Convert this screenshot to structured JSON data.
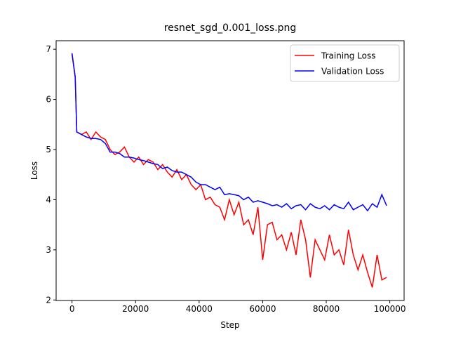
{
  "chart_data": {
    "type": "line",
    "title": "resnet_sgd_0.001_loss.png",
    "x_label": "Step",
    "y_label": "Loss",
    "x": [
      0,
      1000,
      1500,
      3000,
      4500,
      6000,
      7500,
      9000,
      10500,
      12000,
      13500,
      15000,
      16500,
      18000,
      19500,
      21000,
      22500,
      24000,
      25500,
      27000,
      28500,
      30000,
      31500,
      33000,
      34500,
      36000,
      37500,
      39000,
      40500,
      42000,
      43500,
      45000,
      46500,
      48000,
      49500,
      51000,
      52500,
      54000,
      55500,
      57000,
      58500,
      60000,
      61500,
      63000,
      64500,
      66000,
      67500,
      69000,
      70500,
      72000,
      73500,
      75000,
      76500,
      78000,
      79500,
      81000,
      82500,
      84000,
      85500,
      87000,
      88500,
      90000,
      91500,
      93000,
      94500,
      96000,
      97500,
      99000
    ],
    "series": [
      {
        "name": "Training Loss",
        "color": "#ff0000",
        "values": [
          6.9,
          6.45,
          5.35,
          5.3,
          5.35,
          5.2,
          5.35,
          5.25,
          5.2,
          5.0,
          4.9,
          4.95,
          5.05,
          4.85,
          4.75,
          4.85,
          4.7,
          4.8,
          4.75,
          4.6,
          4.7,
          4.55,
          4.45,
          4.6,
          4.4,
          4.5,
          4.3,
          4.2,
          4.3,
          4.0,
          4.05,
          3.9,
          3.85,
          3.6,
          4.0,
          3.7,
          3.95,
          3.5,
          3.6,
          3.3,
          3.85,
          2.8,
          3.5,
          3.55,
          3.2,
          3.3,
          3.0,
          3.35,
          2.9,
          3.6,
          3.2,
          2.45,
          3.2,
          3.0,
          2.8,
          3.3,
          2.9,
          3.0,
          2.7,
          3.4,
          2.9,
          2.6,
          2.9,
          2.55,
          2.25,
          2.9,
          2.4,
          2.45
        ]
      },
      {
        "name": "Validation Loss",
        "color": "#0000ff",
        "values": [
          6.92,
          6.45,
          5.35,
          5.3,
          5.25,
          5.22,
          5.22,
          5.2,
          5.12,
          4.95,
          4.95,
          4.92,
          4.85,
          4.85,
          4.83,
          4.8,
          4.78,
          4.75,
          4.72,
          4.7,
          4.62,
          4.65,
          4.58,
          4.55,
          4.55,
          4.5,
          4.45,
          4.35,
          4.3,
          4.3,
          4.25,
          4.2,
          4.25,
          4.1,
          4.12,
          4.1,
          4.08,
          4.0,
          4.05,
          3.95,
          3.98,
          3.95,
          3.92,
          3.88,
          3.9,
          3.85,
          3.92,
          3.82,
          3.88,
          3.9,
          3.8,
          3.92,
          3.85,
          3.82,
          3.88,
          3.8,
          3.9,
          3.85,
          3.82,
          3.95,
          3.8,
          3.85,
          3.9,
          3.78,
          3.92,
          3.85,
          4.1,
          3.88
        ]
      }
    ],
    "xlim": [
      -5000,
      104500
    ],
    "ylim": [
      1.99,
      7.17
    ],
    "xticks": [
      0,
      20000,
      40000,
      60000,
      80000,
      100000
    ],
    "yticks": [
      2,
      3,
      4,
      5,
      6,
      7
    ],
    "legend": "upper right",
    "grid": false
  }
}
